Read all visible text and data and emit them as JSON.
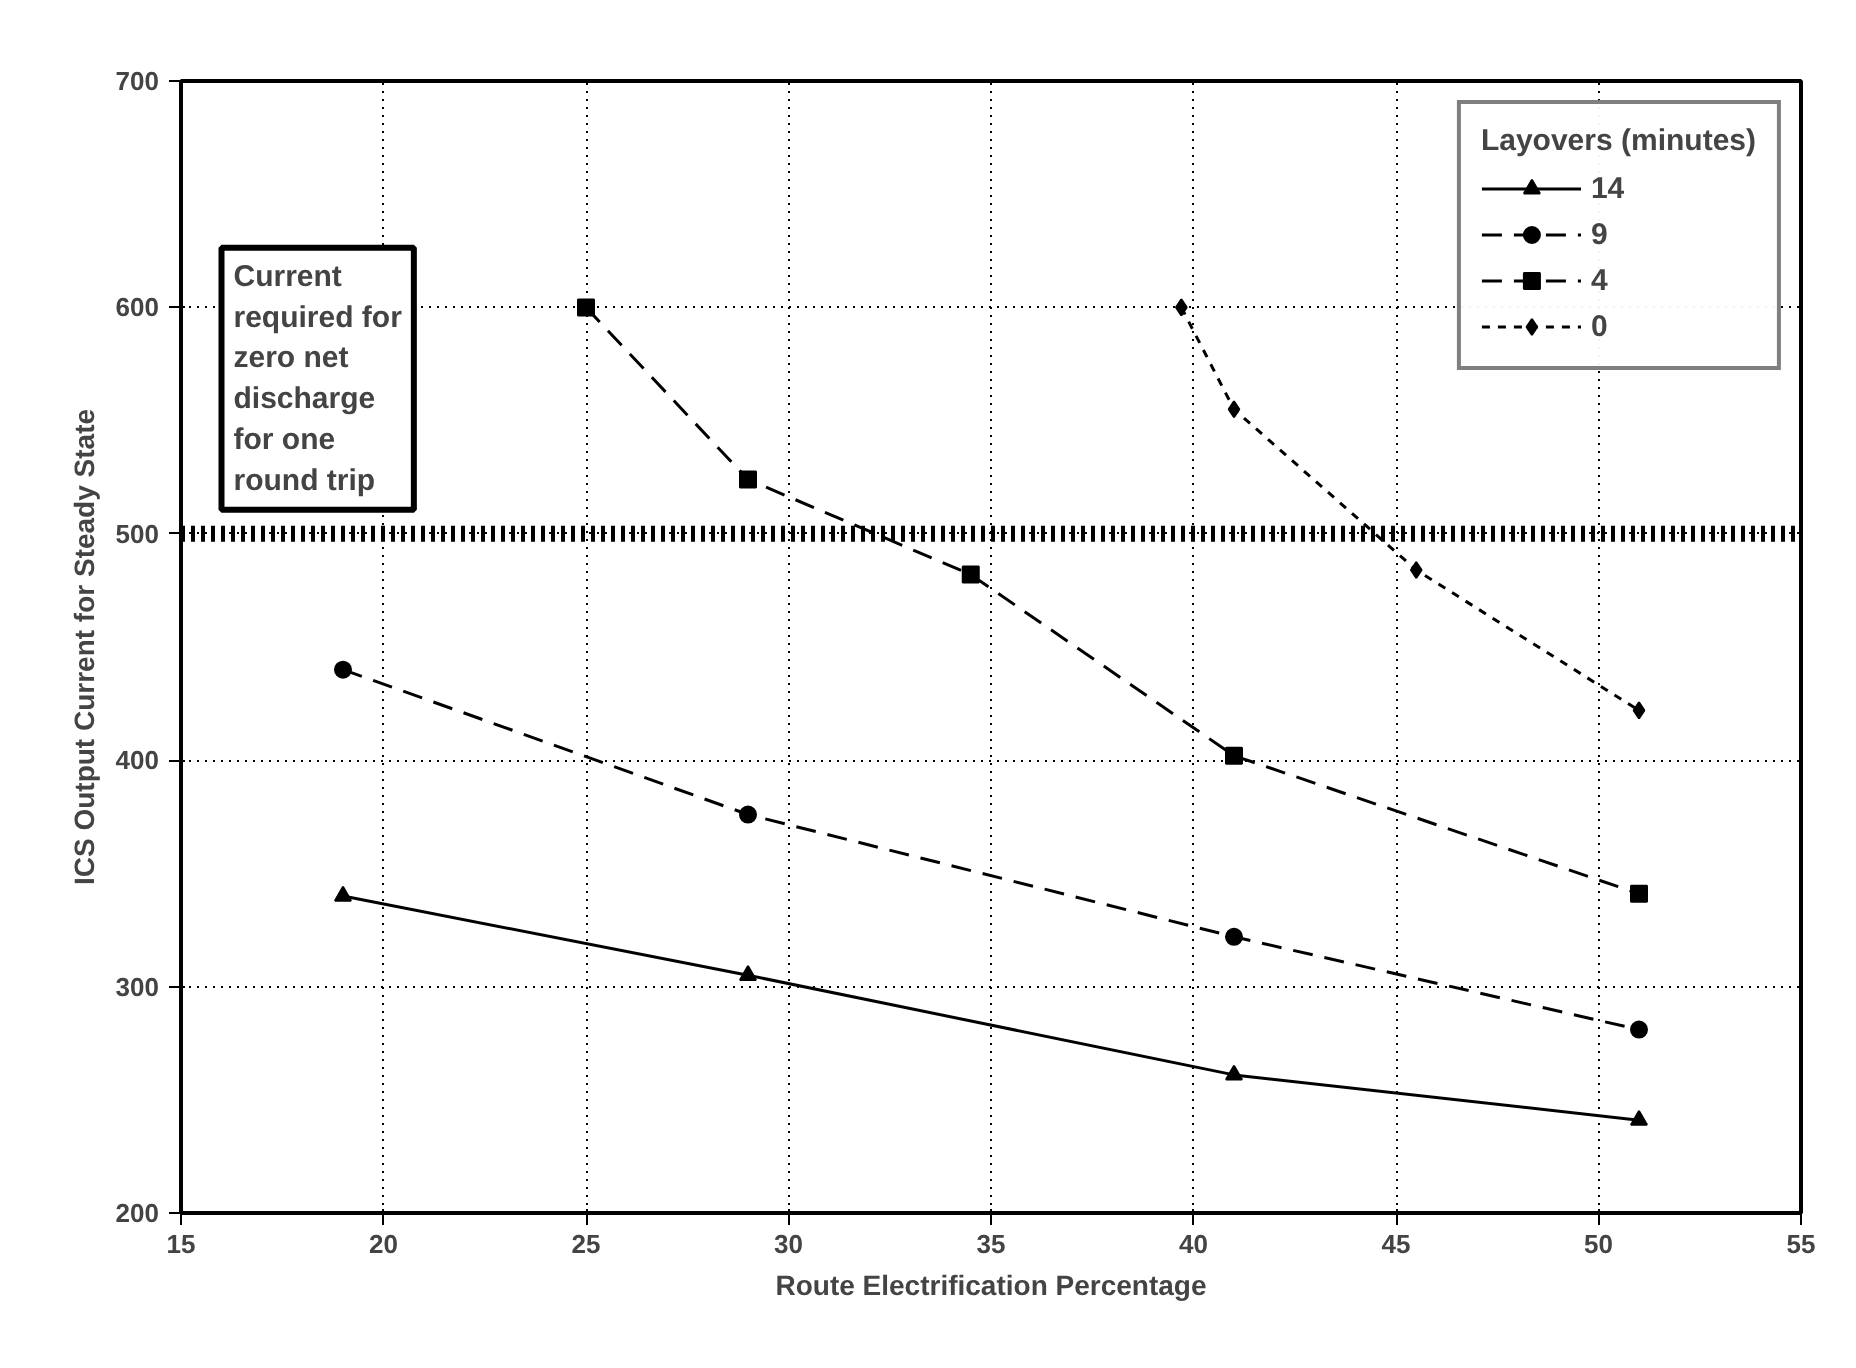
{
  "chart_data": {
    "type": "line",
    "xlabel": "Route Electrification Percentage",
    "ylabel": "ICS Output Current for Steady State",
    "legend_title": "Layovers (minutes)",
    "xlim": [
      15,
      55
    ],
    "xticks": [
      15,
      20,
      25,
      30,
      35,
      40,
      45,
      50,
      55
    ],
    "ylim": [
      200,
      700
    ],
    "yticks": [
      200,
      300,
      400,
      500,
      600,
      700
    ],
    "grid": true,
    "legend": "top right",
    "series": [
      {
        "name": "14",
        "color": "#000000",
        "marker": "triangle",
        "line_style": "solid",
        "x": [
          19,
          29,
          41,
          51
        ],
        "values": [
          340,
          305,
          261,
          241
        ]
      },
      {
        "name": "9",
        "color": "#000000",
        "marker": "circle",
        "line_style": "dashed",
        "x": [
          19,
          29,
          41,
          51
        ],
        "values": [
          440,
          376,
          322,
          281
        ]
      },
      {
        "name": "4",
        "color": "#000000",
        "marker": "square",
        "line_style": "dashed",
        "x": [
          25,
          29,
          34.5,
          41,
          51
        ],
        "values": [
          600,
          524,
          482,
          402,
          341
        ]
      },
      {
        "name": "0",
        "color": "#000000",
        "marker": "diamond",
        "line_style": "dotted",
        "x": [
          39.7,
          41,
          45.5,
          51
        ],
        "values": [
          600,
          555,
          484,
          422
        ]
      }
    ],
    "ref_lines": [
      {
        "axis": "y",
        "value": 500,
        "label": "Current required for zero net discharge for one round trip",
        "color": "#000000",
        "line_style": "dashed"
      }
    ]
  }
}
